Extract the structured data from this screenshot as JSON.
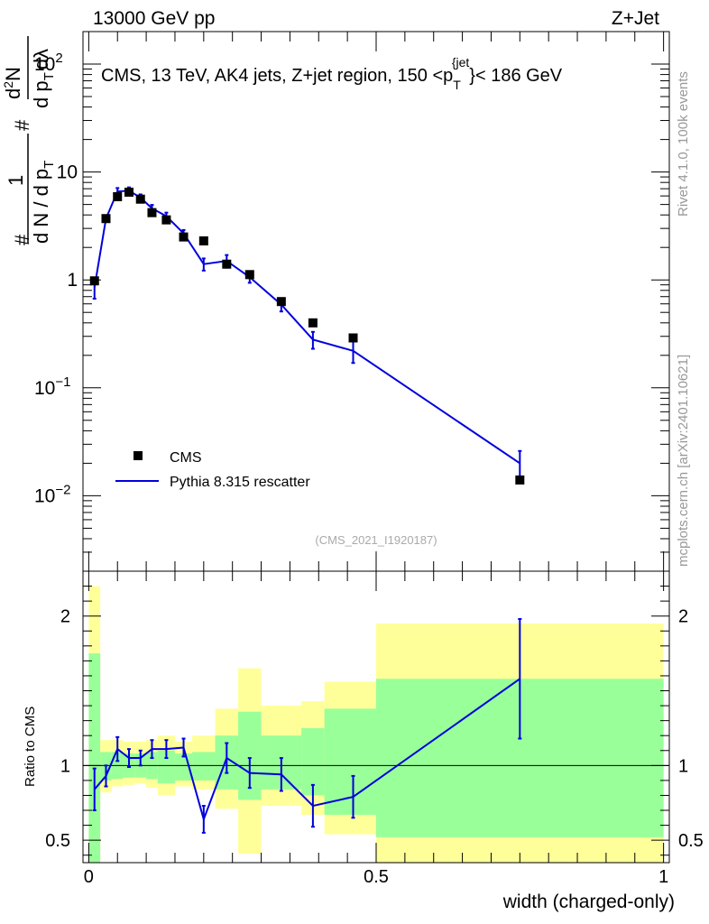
{
  "header": {
    "left_label": "13000 GeV pp",
    "right_label": "Z+Jet"
  },
  "side_labels": {
    "rivet": "Rivet 4.1.0,  100k events",
    "mcplots": "mcplots.cern.ch [arXiv:2401.10621]"
  },
  "colors": {
    "data": "#000000",
    "mc": "#0000dd",
    "band_inner": "#99ff99",
    "band_outer": "#ffff99"
  },
  "chart_data": [
    {
      "type": "scatter",
      "panel": "main",
      "title": "CMS, 13 TeV, AK4 jets, Z+jet region, 150 <p_T^{jet}< 186 GeV",
      "title_parts": {
        "main": "CMS, 13 TeV, AK4 jets, Z+jet region, 150 <p",
        "sub": "T",
        "sup": "{jet",
        "tail": "}< 186 GeV"
      },
      "ylabel": "1/(dN/dp_T) d²N/(dp_T dλ)",
      "ylabel_parts": {
        "hash": "#",
        "one": "1",
        "dN": "d N / d p",
        "sub": "T",
        "d2N": "d",
        "two": "2",
        "N": "N",
        "dp": "d p",
        "dlambda": "dλ"
      },
      "yscale": "log",
      "ylim": [
        0.002,
        200
      ],
      "xlim": [
        -0.01,
        1.01
      ],
      "y_ticks": [
        {
          "value": 100,
          "base": "10",
          "exp": "2"
        },
        {
          "value": 10,
          "base": "10",
          "exp": ""
        },
        {
          "value": 1,
          "base": "1",
          "exp": ""
        },
        {
          "value": 0.1,
          "base": "10",
          "exp": "−1"
        },
        {
          "value": 0.01,
          "base": "10",
          "exp": "−2"
        }
      ],
      "legend": [
        {
          "label": "CMS",
          "marker": "square"
        },
        {
          "label": "Pythia 8.315 rescatter",
          "marker": "line"
        }
      ],
      "legend_position": "bottom-left",
      "annotation": "(CMS_2021_I1920187)",
      "series": [
        {
          "name": "CMS",
          "x": [
            0.01,
            0.03,
            0.05,
            0.07,
            0.09,
            0.11,
            0.135,
            0.165,
            0.2,
            0.24,
            0.28,
            0.335,
            0.39,
            0.46,
            0.75
          ],
          "values": [
            0.98,
            3.7,
            5.9,
            6.5,
            5.6,
            4.2,
            3.6,
            2.5,
            2.3,
            1.4,
            1.12,
            0.63,
            0.4,
            0.29,
            0.014
          ]
        },
        {
          "name": "Pythia 8.315 rescatter",
          "x": [
            0.01,
            0.03,
            0.05,
            0.07,
            0.09,
            0.11,
            0.135,
            0.165,
            0.2,
            0.24,
            0.28,
            0.335,
            0.39,
            0.46,
            0.75
          ],
          "values": [
            0.85,
            3.7,
            6.6,
            6.7,
            5.8,
            4.6,
            3.9,
            2.7,
            1.4,
            1.5,
            1.06,
            0.59,
            0.28,
            0.22,
            0.02
          ],
          "err_lo": [
            0.18,
            0.25,
            0.5,
            0.5,
            0.4,
            0.35,
            0.3,
            0.2,
            0.18,
            0.2,
            0.12,
            0.08,
            0.05,
            0.05,
            0.006
          ],
          "err_hi": [
            0.18,
            0.25,
            0.5,
            0.5,
            0.4,
            0.35,
            0.3,
            0.2,
            0.18,
            0.2,
            0.12,
            0.08,
            0.05,
            0.05,
            0.006
          ]
        }
      ]
    },
    {
      "type": "line",
      "panel": "ratio",
      "ylabel": "Ratio to CMS",
      "xlabel": "width (charged-only)",
      "ylim": [
        0.35,
        2.3
      ],
      "xlim": [
        -0.01,
        1.01
      ],
      "y_ticks": [
        0.5,
        1,
        2
      ],
      "x_ticks": [
        {
          "value": 0,
          "label": "0"
        },
        {
          "value": 0.5,
          "label": "0.5"
        },
        {
          "value": 1,
          "label": "1"
        }
      ],
      "reference_line": 1,
      "bands": {
        "edges": [
          0,
          0.02,
          0.04,
          0.06,
          0.08,
          0.1,
          0.12,
          0.15,
          0.18,
          0.22,
          0.26,
          0.3,
          0.37,
          0.41,
          0.5,
          1.0
        ],
        "inner_lo": [
          0.35,
          0.9,
          0.91,
          0.92,
          0.92,
          0.91,
          0.88,
          0.9,
          0.9,
          0.84,
          0.77,
          0.84,
          0.8,
          0.67,
          0.52
        ],
        "inner_hi": [
          1.75,
          1.09,
          1.09,
          1.08,
          1.08,
          1.09,
          1.1,
          1.08,
          1.09,
          1.2,
          1.36,
          1.2,
          1.25,
          1.38,
          1.58
        ],
        "outer_lo": [
          0.35,
          0.82,
          0.86,
          0.87,
          0.88,
          0.85,
          0.8,
          0.86,
          0.84,
          0.71,
          0.41,
          0.73,
          0.67,
          0.54,
          0.35
        ],
        "outer_hi": [
          2.2,
          1.17,
          1.17,
          1.16,
          1.16,
          1.17,
          1.2,
          1.16,
          1.2,
          1.38,
          1.65,
          1.4,
          1.43,
          1.56,
          1.95
        ]
      },
      "series": [
        {
          "name": "Pythia 8.315 rescatter / CMS",
          "x": [
            0.01,
            0.03,
            0.05,
            0.07,
            0.09,
            0.11,
            0.135,
            0.165,
            0.2,
            0.24,
            0.28,
            0.335,
            0.39,
            0.46,
            0.75
          ],
          "values": [
            0.84,
            0.93,
            1.11,
            1.05,
            1.05,
            1.11,
            1.11,
            1.12,
            0.64,
            1.05,
            0.95,
            0.94,
            0.73,
            0.79,
            1.58
          ],
          "err": [
            0.14,
            0.07,
            0.08,
            0.06,
            0.05,
            0.06,
            0.06,
            0.06,
            0.09,
            0.1,
            0.1,
            0.11,
            0.14,
            0.14,
            0.4
          ]
        }
      ]
    }
  ]
}
